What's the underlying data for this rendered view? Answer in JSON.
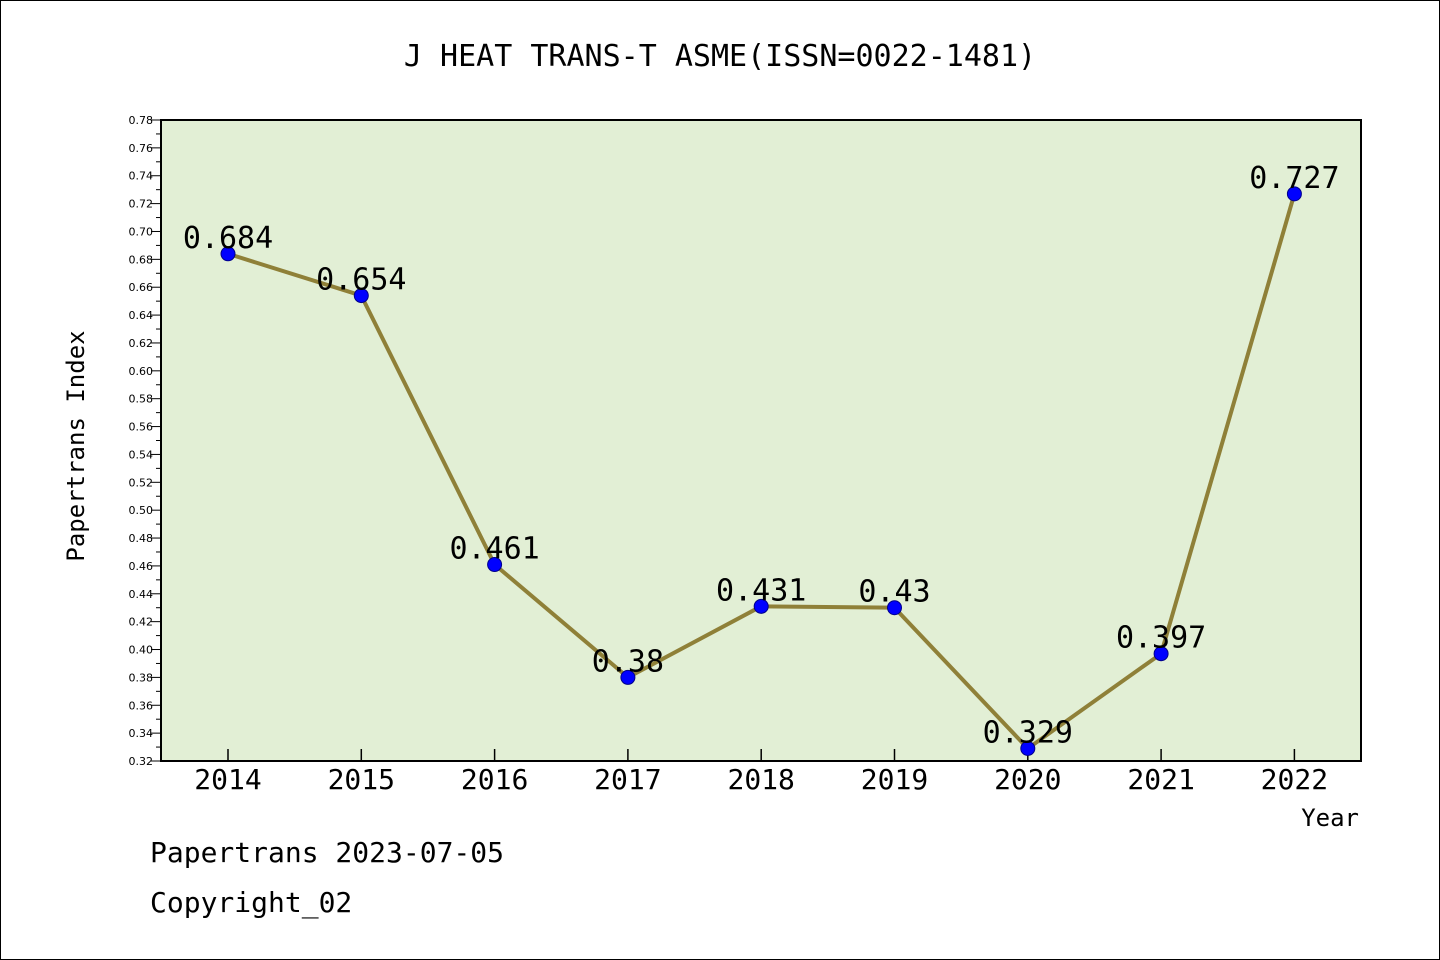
{
  "chart_data": {
    "type": "line",
    "title": "J HEAT TRANS-T ASME(ISSN=0022-1481)",
    "xlabel": "Year",
    "ylabel": "Papertrans Index",
    "categories": [
      "2014",
      "2015",
      "2016",
      "2017",
      "2018",
      "2019",
      "2020",
      "2021",
      "2022"
    ],
    "values": [
      0.684,
      0.654,
      0.461,
      0.38,
      0.431,
      0.43,
      0.329,
      0.397,
      0.727
    ],
    "data_labels": [
      "0.684",
      "0.654",
      "0.461",
      "0.38",
      "0.431",
      "0.43",
      "0.329",
      "0.397",
      "0.727"
    ],
    "ylim": [
      0.32,
      0.78
    ],
    "yticks": [
      "0.32",
      "0.34",
      "0.36",
      "0.38",
      "0.40",
      "0.42",
      "0.44",
      "0.46",
      "0.48",
      "0.50",
      "0.52",
      "0.54",
      "0.56",
      "0.58",
      "0.60",
      "0.62",
      "0.64",
      "0.66",
      "0.68",
      "0.70",
      "0.72",
      "0.74",
      "0.76",
      "0.78"
    ],
    "grid": false,
    "colors": {
      "plot_background": "#e2efd5",
      "line": "#8f8038",
      "marker": "#0000ff"
    }
  },
  "footer": {
    "line1": "Papertrans 2023-07-05",
    "line2": "Copyright_02"
  }
}
